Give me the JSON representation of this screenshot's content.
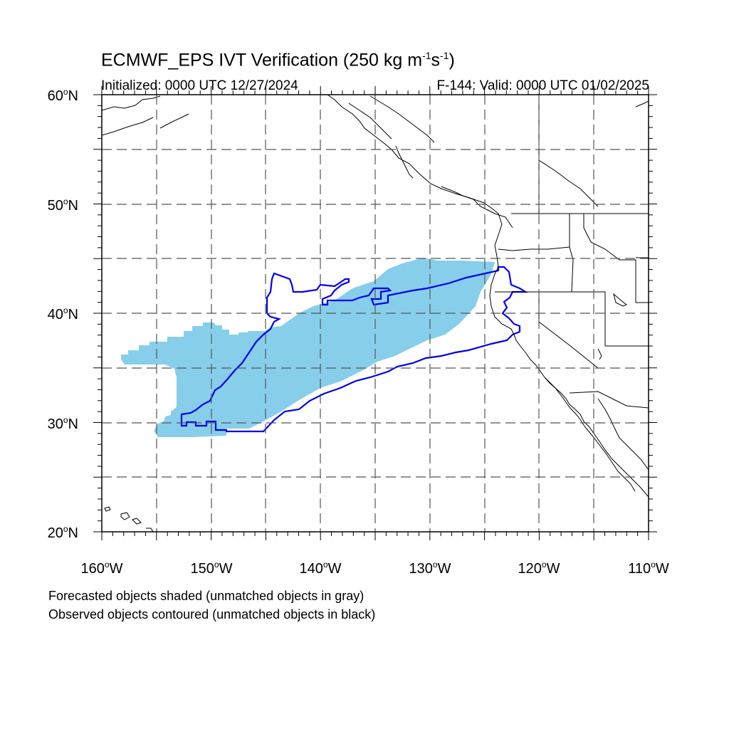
{
  "header": {
    "title_main": "ECMWF_EPS IVT Verification (250 kg m",
    "title_exp1": "-1",
    "title_mid": "s",
    "title_exp2": "-1",
    "title_end": ")",
    "initialized": "Initialized: 0000 UTC 12/27/2024",
    "valid": "F-144: Valid: 0000 UTC 01/02/2025"
  },
  "axes": {
    "lat_labels": [
      "60",
      "50",
      "40",
      "30",
      "20"
    ],
    "lat_suffix": "N",
    "lon_labels": [
      "160",
      "150",
      "140",
      "130",
      "120",
      "110"
    ],
    "lon_suffix": "W",
    "lat_range": [
      20,
      60
    ],
    "lon_range": [
      -160,
      -110
    ]
  },
  "legend": {
    "line1": "Forecasted objects shaded (unmatched objects in gray)",
    "line2": "Observed objects contoured (unmatched objects in black)"
  },
  "colors": {
    "forecast_fill": "#87ceeb",
    "observed_contour": "#0000ee",
    "coastline": "#000000",
    "grid": "#555555"
  }
}
